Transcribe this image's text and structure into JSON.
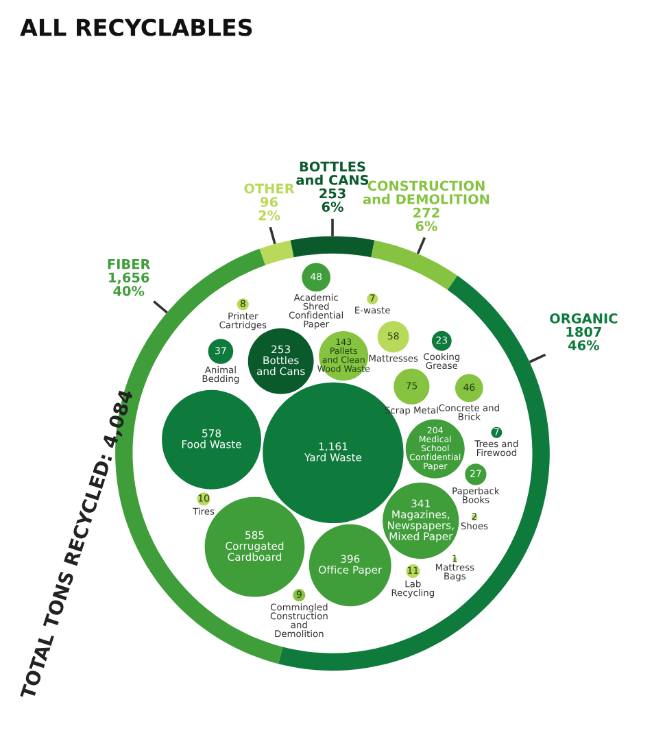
{
  "chart_data": [
    {
      "type": "donut",
      "title": "ALL RECYCLABLES",
      "categories": [
        "FIBER",
        "OTHER",
        "BOTTLES and CANS",
        "CONSTRUCTION and DEMOLITION",
        "ORGANIC"
      ],
      "values": [
        1656,
        96,
        253,
        272,
        1807
      ],
      "value_labels": [
        "1,656\n40%",
        "96\n2%",
        "253\n6%",
        "272\n6%",
        "1807\n46%"
      ],
      "colors": [
        "#3f9e3a",
        "#b9d95b",
        "#0b5a2b",
        "#86c340",
        "#0e7a3c"
      ],
      "annotations": [
        "TOTAL TONS RECYCLED: 4,084"
      ]
    },
    {
      "type": "other",
      "categories": [
        "Yard Waste",
        "Corrugated Cardboard",
        "Food Waste",
        "Office Paper",
        "Magazines, Newspapers, Mixed Paper",
        "Bottles and Cans",
        "Medical School Confidential Paper",
        "Pallets and Clean Wood Waste",
        "Scrap Metal",
        "Mattresses",
        "Academic Shred Confidential Paper",
        "Concrete and Brick",
        "Animal Bedding",
        "Paperback Books",
        "Cooking Grease",
        "Lab Recycling",
        "Tires",
        "Commingled Construction and Demolition",
        "Printer Cartridges",
        "E-waste",
        "Trees and Firewood",
        "Shoes",
        "Mattress Bags"
      ],
      "values": [
        1161,
        585,
        578,
        396,
        341,
        253,
        204,
        143,
        75,
        58,
        48,
        46,
        37,
        27,
        23,
        11,
        10,
        9,
        8,
        7,
        7,
        2,
        1
      ],
      "value_labels": [
        "1,161",
        "585",
        "578",
        "396",
        "341",
        "253",
        "204",
        "143",
        "75",
        "58",
        "48",
        "46",
        "37",
        "27",
        "23",
        "11",
        "10",
        "9",
        "8",
        "7",
        "7",
        "2",
        "1"
      ],
      "colors": [
        "#0e7a3c",
        "#3f9e3a",
        "#0e7a3c",
        "#3f9e3a",
        "#3f9e3a",
        "#0b5a2b",
        "#3f9e3a",
        "#86c340",
        "#86c340",
        "#b9d95b",
        "#3f9e3a",
        "#86c340",
        "#0e7a3c",
        "#3f9e3a",
        "#0e7a3c",
        "#b9d95b",
        "#b9d95b",
        "#86c340",
        "#b9d95b",
        "#b9d95b",
        "#0e7a3c",
        "#b9d95b",
        "#b9d95b"
      ]
    }
  ]
}
